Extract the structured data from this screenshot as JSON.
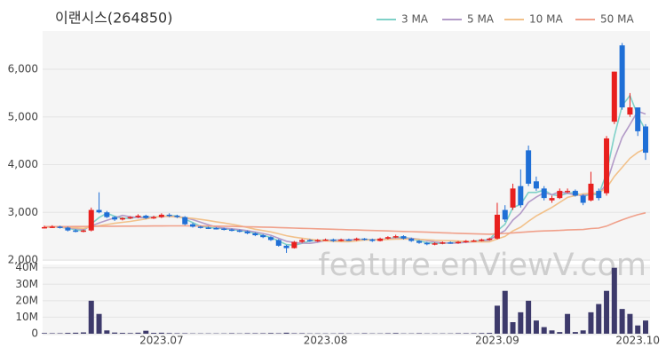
{
  "chart_data": {
    "type": "candlestick",
    "title": "이랜시스(264850)",
    "watermark": "feature.enViewV.com",
    "categories": [
      null,
      null,
      null,
      null,
      null,
      null,
      null,
      null,
      null,
      null,
      null,
      null,
      null,
      null,
      null,
      "2023.07",
      null,
      null,
      null,
      null,
      null,
      null,
      null,
      null,
      null,
      null,
      null,
      null,
      null,
      null,
      null,
      null,
      null,
      null,
      null,
      null,
      "2023.08",
      null,
      null,
      null,
      null,
      null,
      null,
      null,
      null,
      null,
      null,
      null,
      null,
      null,
      null,
      null,
      null,
      null,
      null,
      null,
      null,
      null,
      "2023.09",
      null,
      null,
      null,
      null,
      null,
      null,
      null,
      null,
      null,
      null,
      null,
      null,
      null,
      null,
      null,
      null,
      null,
      "2023.10",
      null
    ],
    "open": [
      2680,
      2690,
      2700,
      2680,
      2620,
      2600,
      2620,
      3050,
      3000,
      2900,
      2850,
      2880,
      2900,
      2930,
      2880,
      2900,
      2950,
      2930,
      2900,
      2750,
      2700,
      2680,
      2670,
      2660,
      2640,
      2620,
      2600,
      2560,
      2520,
      2480,
      2420,
      2300,
      2250,
      2380,
      2420,
      2400,
      2420,
      2430,
      2400,
      2430,
      2420,
      2450,
      2430,
      2400,
      2450,
      2480,
      2500,
      2450,
      2400,
      2360,
      2330,
      2350,
      2370,
      2360,
      2380,
      2400,
      2410,
      2430,
      2450,
      3050,
      3100,
      3550,
      4300,
      3650,
      3500,
      3250,
      3300,
      3450,
      3450,
      3350,
      3250,
      3450,
      3400,
      4900,
      6500,
      5050,
      5200,
      4800
    ],
    "high": [
      2720,
      2730,
      2720,
      2700,
      2650,
      2640,
      3100,
      3420,
      3030,
      2920,
      2900,
      2920,
      2960,
      2950,
      2930,
      2980,
      2980,
      2950,
      2920,
      2780,
      2720,
      2700,
      2690,
      2680,
      2660,
      2640,
      2620,
      2580,
      2540,
      2500,
      2440,
      2320,
      2400,
      2450,
      2440,
      2440,
      2450,
      2450,
      2450,
      2450,
      2470,
      2460,
      2450,
      2470,
      2500,
      2530,
      2520,
      2470,
      2420,
      2380,
      2370,
      2390,
      2390,
      2400,
      2420,
      2430,
      2450,
      2470,
      3200,
      3150,
      3600,
      3900,
      4400,
      3750,
      3550,
      3350,
      3500,
      3500,
      3480,
      3380,
      3850,
      3500,
      4600,
      5950,
      6550,
      5500,
      5200,
      4850
    ],
    "low": [
      2660,
      2670,
      2660,
      2600,
      2580,
      2580,
      2600,
      2980,
      2880,
      2820,
      2830,
      2860,
      2880,
      2860,
      2860,
      2880,
      2900,
      2880,
      2730,
      2680,
      2660,
      2650,
      2640,
      2620,
      2600,
      2580,
      2540,
      2500,
      2460,
      2400,
      2280,
      2150,
      2240,
      2360,
      2380,
      2380,
      2400,
      2380,
      2390,
      2400,
      2400,
      2410,
      2380,
      2390,
      2430,
      2460,
      2430,
      2380,
      2340,
      2310,
      2310,
      2330,
      2340,
      2340,
      2360,
      2380,
      2390,
      2410,
      2430,
      2800,
      3050,
      3100,
      3550,
      3450,
      3250,
      3200,
      3280,
      3400,
      3330,
      3150,
      3230,
      3250,
      3350,
      4850,
      5150,
      5000,
      4600,
      4100
    ],
    "close": [
      2690,
      2700,
      2680,
      2620,
      2600,
      2620,
      3050,
      3000,
      2900,
      2850,
      2880,
      2900,
      2930,
      2880,
      2900,
      2950,
      2930,
      2900,
      2750,
      2700,
      2680,
      2670,
      2660,
      2640,
      2620,
      2600,
      2560,
      2520,
      2480,
      2420,
      2300,
      2250,
      2380,
      2420,
      2400,
      2420,
      2430,
      2400,
      2430,
      2420,
      2450,
      2430,
      2400,
      2450,
      2480,
      2500,
      2450,
      2400,
      2360,
      2330,
      2350,
      2370,
      2360,
      2380,
      2400,
      2410,
      2430,
      2450,
      2950,
      2850,
      3500,
      3150,
      3600,
      3500,
      3300,
      3300,
      3450,
      3450,
      3350,
      3200,
      3600,
      3300,
      4550,
      5950,
      5200,
      5200,
      4700,
      4250
    ],
    "volume": [
      400000,
      300000,
      300000,
      500000,
      600000,
      800000,
      20000000,
      12000000,
      2000000,
      700000,
      500000,
      400000,
      600000,
      1800000,
      500000,
      600000,
      400000,
      300000,
      300000,
      200000,
      200000,
      200000,
      200000,
      200000,
      300000,
      200000,
      300000,
      300000,
      300000,
      400000,
      300000,
      600000,
      300000,
      300000,
      200000,
      200000,
      200000,
      200000,
      300000,
      200000,
      200000,
      300000,
      200000,
      200000,
      300000,
      400000,
      200000,
      200000,
      300000,
      200000,
      200000,
      200000,
      200000,
      300000,
      300000,
      300000,
      400000,
      500000,
      17000000,
      26000000,
      7000000,
      13000000,
      20000000,
      8000000,
      4000000,
      2000000,
      1000000,
      12000000,
      1000000,
      2000000,
      13000000,
      18000000,
      26000000,
      40000000,
      15000000,
      12000000,
      5000000,
      8000000
    ],
    "up_color": "#e8201e",
    "down_color": "#1f6fd6",
    "volume_color": "#3d3a6b",
    "ylim": [
      2000,
      6800
    ],
    "yticks": [
      {
        "value": 2000,
        "label": "2,000"
      },
      {
        "value": 3000,
        "label": "3,000"
      },
      {
        "value": 4000,
        "label": "4,000"
      },
      {
        "value": 5000,
        "label": "5,000"
      },
      {
        "value": 6000,
        "label": "6,000"
      }
    ],
    "volume_ylim": [
      0,
      42000000
    ],
    "volume_yticks": [
      0,
      {
        "value": 10000000,
        "label": "10M"
      },
      {
        "value": 20000000,
        "label": "20M"
      },
      {
        "value": 30000000,
        "label": "30M"
      },
      {
        "value": 40000000,
        "label": "40M"
      }
    ],
    "grid": true,
    "legend": "top-right",
    "series": [
      {
        "name": "3 MA",
        "color": "#7fd1c8",
        "values": [
          2690,
          2695,
          2690,
          2667,
          2633,
          2613,
          2757,
          2890,
          2983,
          2917,
          2877,
          2877,
          2903,
          2903,
          2903,
          2910,
          2927,
          2927,
          2860,
          2783,
          2710,
          2683,
          2670,
          2657,
          2640,
          2620,
          2593,
          2560,
          2520,
          2473,
          2400,
          2323,
          2310,
          2350,
          2400,
          2413,
          2417,
          2417,
          2420,
          2417,
          2433,
          2433,
          2427,
          2427,
          2443,
          2477,
          2477,
          2450,
          2403,
          2363,
          2347,
          2350,
          2360,
          2370,
          2380,
          2397,
          2413,
          2430,
          2610,
          2750,
          3100,
          3167,
          3417,
          3417,
          3467,
          3367,
          3350,
          3400,
          3417,
          3333,
          3383,
          3367,
          3817,
          4600,
          5233,
          5450,
          5033,
          4717
        ]
      },
      {
        "name": "5 MA",
        "color": "#b39bc8",
        "values": [
          2690,
          2695,
          2690,
          2673,
          2658,
          2644,
          2714,
          2778,
          2834,
          2884,
          2936,
          2906,
          2892,
          2888,
          2898,
          2912,
          2918,
          2916,
          2886,
          2846,
          2792,
          2740,
          2692,
          2670,
          2654,
          2638,
          2616,
          2588,
          2556,
          2520,
          2456,
          2394,
          2366,
          2354,
          2350,
          2374,
          2410,
          2414,
          2416,
          2420,
          2426,
          2426,
          2426,
          2430,
          2442,
          2452,
          2456,
          2456,
          2438,
          2408,
          2378,
          2362,
          2354,
          2358,
          2372,
          2384,
          2396,
          2414,
          2528,
          2618,
          2836,
          2980,
          3210,
          3320,
          3410,
          3370,
          3430,
          3400,
          3370,
          3350,
          3410,
          3380,
          3600,
          4120,
          4570,
          4840,
          5120,
          5060
        ]
      },
      {
        "name": "10 MA",
        "color": "#f2c18a",
        "values": [
          2690,
          2692,
          2693,
          2685,
          2675,
          2665,
          2700,
          2720,
          2745,
          2771,
          2790,
          2810,
          2835,
          2861,
          2891,
          2924,
          2912,
          2902,
          2887,
          2872,
          2852,
          2829,
          2802,
          2778,
          2750,
          2720,
          2683,
          2645,
          2617,
          2589,
          2551,
          2509,
          2480,
          2457,
          2435,
          2415,
          2402,
          2390,
          2385,
          2385,
          2400,
          2420,
          2420,
          2423,
          2431,
          2439,
          2441,
          2441,
          2434,
          2425,
          2415,
          2409,
          2405,
          2398,
          2390,
          2381,
          2379,
          2384,
          2443,
          2495,
          2610,
          2688,
          2812,
          2924,
          3014,
          3103,
          3208,
          3313,
          3353,
          3388,
          3397,
          3412,
          3507,
          3752,
          3942,
          4132,
          4257,
          4337
        ]
      },
      {
        "name": "50 MA",
        "color": "#f0a08a",
        "values": [
          2700,
          2701,
          2702,
          2702,
          2703,
          2703,
          2705,
          2707,
          2708,
          2709,
          2710,
          2711,
          2712,
          2713,
          2714,
          2715,
          2716,
          2716,
          2716,
          2715,
          2714,
          2712,
          2710,
          2708,
          2705,
          2702,
          2698,
          2694,
          2690,
          2686,
          2680,
          2675,
          2670,
          2665,
          2660,
          2655,
          2650,
          2645,
          2640,
          2635,
          2630,
          2625,
          2620,
          2615,
          2610,
          2605,
          2600,
          2595,
          2590,
          2585,
          2578,
          2572,
          2566,
          2560,
          2555,
          2550,
          2546,
          2542,
          2550,
          2558,
          2570,
          2580,
          2592,
          2602,
          2610,
          2616,
          2622,
          2630,
          2636,
          2640,
          2660,
          2670,
          2710,
          2780,
          2840,
          2900,
          2950,
          2990
        ]
      }
    ]
  }
}
